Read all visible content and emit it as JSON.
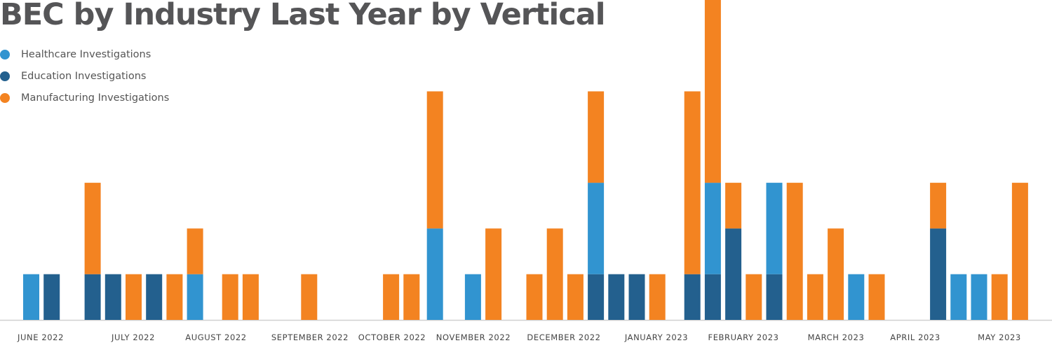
{
  "chart_data": {
    "type": "bar",
    "stacked": true,
    "title": "BEC by Industry Last Year by Vertical",
    "xlabel": "",
    "ylabel": "",
    "ylim": [
      0,
      7
    ],
    "grid": false,
    "legend_position": "top-left",
    "month_labels": [
      "JUNE 2022",
      "JULY 2022",
      "AUGUST 2022",
      "SEPTEMBER 2022",
      "OCTOBER 2022",
      "NOVEMBER 2022",
      "DECEMBER 2022",
      "JANUARY 2023",
      "FEBRUARY 2023",
      "MARCH 2023",
      "APRIL 2023",
      "MAY 2023"
    ],
    "x": [
      "2022-05-29",
      "2022-06-05",
      "2022-06-19",
      "2022-06-26",
      "2022-07-03",
      "2022-07-10",
      "2022-07-17",
      "2022-07-24",
      "2022-08-05",
      "2022-08-12",
      "2022-09-01",
      "2022-09-29",
      "2022-10-06",
      "2022-10-14",
      "2022-10-27",
      "2022-11-03",
      "2022-11-17",
      "2022-11-24",
      "2022-12-01",
      "2022-12-08",
      "2022-12-15",
      "2022-12-22",
      "2022-12-29",
      "2023-01-10",
      "2023-01-17",
      "2023-01-24",
      "2023-01-31",
      "2023-02-07",
      "2023-02-14",
      "2023-02-21",
      "2023-02-28",
      "2023-03-07",
      "2023-03-14",
      "2023-04-04",
      "2023-04-11",
      "2023-04-18",
      "2023-04-25",
      "2023-05-02"
    ],
    "series": [
      {
        "name": "Education Investigations",
        "color": "#23608e",
        "values": [
          0,
          1,
          1,
          1,
          0,
          1,
          0,
          0,
          0,
          0,
          0,
          0,
          0,
          0,
          0,
          0,
          0,
          0,
          0,
          1,
          1,
          1,
          0,
          1,
          1,
          2,
          0,
          1,
          0,
          0,
          0,
          0,
          0,
          2,
          0,
          0,
          0,
          0
        ]
      },
      {
        "name": "Healthcare Investigations",
        "color": "#3194d0",
        "values": [
          1,
          0,
          0,
          0,
          0,
          0,
          0,
          1,
          0,
          0,
          0,
          0,
          0,
          2,
          1,
          0,
          0,
          0,
          0,
          2,
          0,
          0,
          0,
          0,
          2,
          0,
          0,
          2,
          0,
          0,
          0,
          1,
          0,
          0,
          1,
          1,
          0,
          0
        ]
      },
      {
        "name": "Manufacturing Investigations",
        "color": "#f38321",
        "values": [
          0,
          0,
          2,
          0,
          1,
          0,
          1,
          1,
          1,
          1,
          1,
          1,
          1,
          3,
          0,
          2,
          1,
          2,
          1,
          2,
          0,
          0,
          1,
          4,
          4,
          1,
          1,
          0,
          3,
          1,
          2,
          0,
          1,
          1,
          0,
          0,
          1,
          3
        ]
      }
    ],
    "legend_order": [
      "Healthcare Investigations",
      "Education Investigations",
      "Manufacturing Investigations"
    ]
  }
}
